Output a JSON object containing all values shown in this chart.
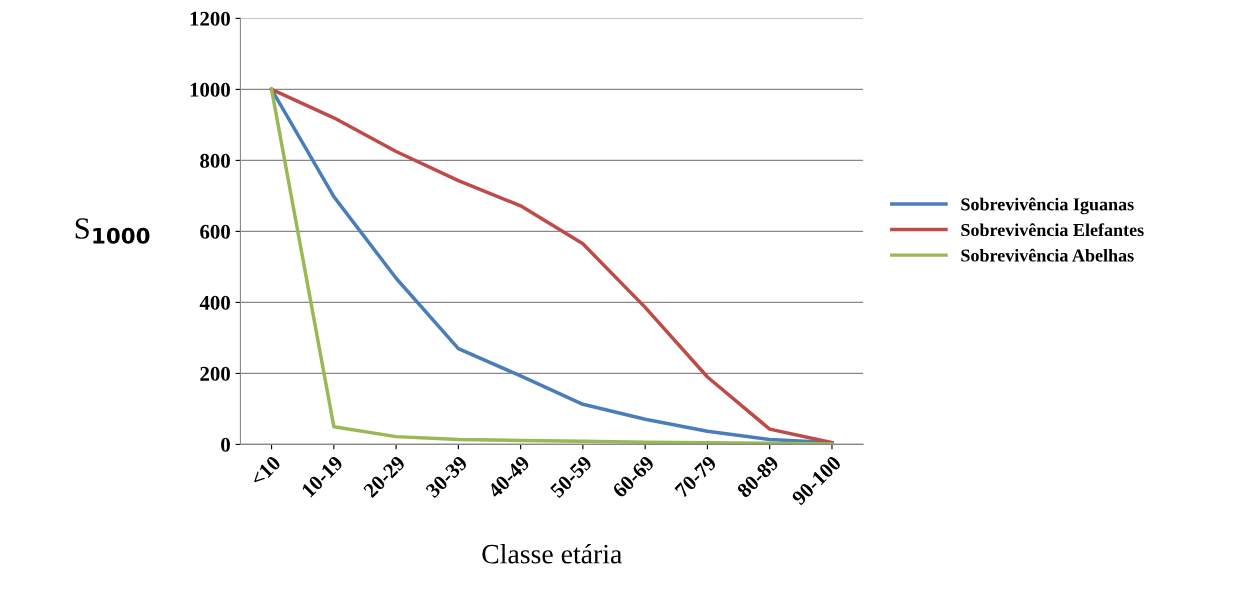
{
  "chart_data": {
    "type": "line",
    "xlabel": "Classe etária",
    "ylabel": "S$_{1000}$",
    "categories": [
      "<10",
      "10-19",
      "20-29",
      "30-39",
      "40-49",
      "50-59",
      "60-69",
      "70-79",
      "80-89",
      "90-100"
    ],
    "series": [
      {
        "name": "Sobrevivência Iguanas",
        "color": "#4a7ebb",
        "values": [
          1000,
          698,
          468,
          270,
          193,
          113,
          71,
          37,
          14,
          5
        ]
      },
      {
        "name": "Sobrevivência Elefantes",
        "color": "#be4b48",
        "values": [
          1000,
          920,
          825,
          743,
          672,
          565,
          386,
          190,
          43,
          5
        ]
      },
      {
        "name": "Sobrevivência Abelhas",
        "color": "#98b954",
        "values": [
          1000,
          50,
          22,
          14,
          11,
          9,
          6,
          5,
          3,
          1
        ]
      }
    ],
    "ylim": [
      0,
      1200
    ],
    "yticks": [
      0,
      200,
      400,
      600,
      800,
      1000,
      1200
    ],
    "grid": "y",
    "legend": "right",
    "marker": "none",
    "line_style": "solid"
  }
}
